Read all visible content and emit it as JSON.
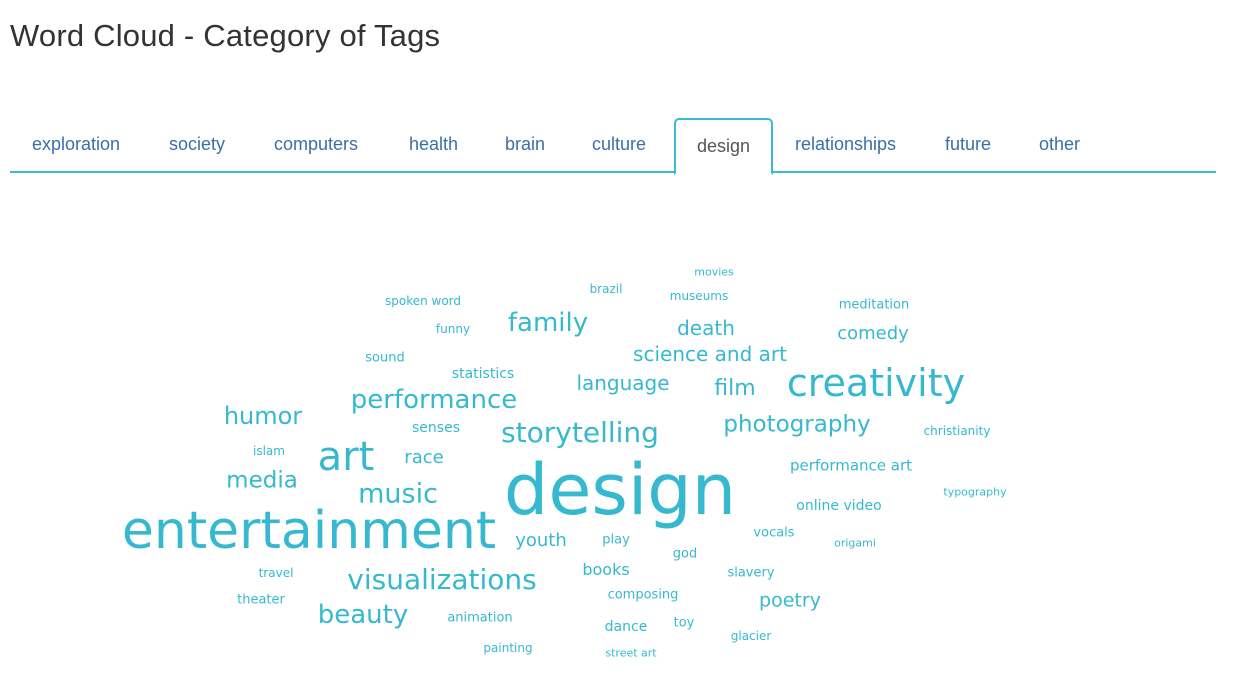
{
  "page": {
    "title": "Word Cloud - Category of Tags"
  },
  "colors": {
    "accent": "#36b9cf",
    "tab_link": "#3a6fa8",
    "tab_active_text": "#555555",
    "title": "#333333"
  },
  "tabs": [
    {
      "label": "exploration",
      "active": false
    },
    {
      "label": "society",
      "active": false
    },
    {
      "label": "computers",
      "active": false
    },
    {
      "label": "health",
      "active": false
    },
    {
      "label": "brain",
      "active": false
    },
    {
      "label": "culture",
      "active": false
    },
    {
      "label": "design",
      "active": true
    },
    {
      "label": "relationships",
      "active": false
    },
    {
      "label": "future",
      "active": false
    },
    {
      "label": "other",
      "active": false
    }
  ],
  "cloud": {
    "words": [
      {
        "text": "movies"
      },
      {
        "text": "brazil"
      },
      {
        "text": "museums"
      },
      {
        "text": "spoken word"
      },
      {
        "text": "meditation"
      },
      {
        "text": "funny"
      },
      {
        "text": "family"
      },
      {
        "text": "death"
      },
      {
        "text": "comedy"
      },
      {
        "text": "sound"
      },
      {
        "text": "science and art"
      },
      {
        "text": "statistics"
      },
      {
        "text": "language"
      },
      {
        "text": "film"
      },
      {
        "text": "creativity"
      },
      {
        "text": "performance"
      },
      {
        "text": "humor"
      },
      {
        "text": "senses"
      },
      {
        "text": "storytelling"
      },
      {
        "text": "photography"
      },
      {
        "text": "christianity"
      },
      {
        "text": "islam"
      },
      {
        "text": "art"
      },
      {
        "text": "race"
      },
      {
        "text": "media"
      },
      {
        "text": "performance art"
      },
      {
        "text": "music"
      },
      {
        "text": "design"
      },
      {
        "text": "typography"
      },
      {
        "text": "online video"
      },
      {
        "text": "entertainment"
      },
      {
        "text": "vocals"
      },
      {
        "text": "youth"
      },
      {
        "text": "play"
      },
      {
        "text": "origami"
      },
      {
        "text": "god"
      },
      {
        "text": "travel"
      },
      {
        "text": "visualizations"
      },
      {
        "text": "books"
      },
      {
        "text": "slavery"
      },
      {
        "text": "composing"
      },
      {
        "text": "theater"
      },
      {
        "text": "poetry"
      },
      {
        "text": "beauty"
      },
      {
        "text": "animation"
      },
      {
        "text": "toy"
      },
      {
        "text": "dance"
      },
      {
        "text": "glacier"
      },
      {
        "text": "painting"
      },
      {
        "text": "street art"
      }
    ]
  }
}
